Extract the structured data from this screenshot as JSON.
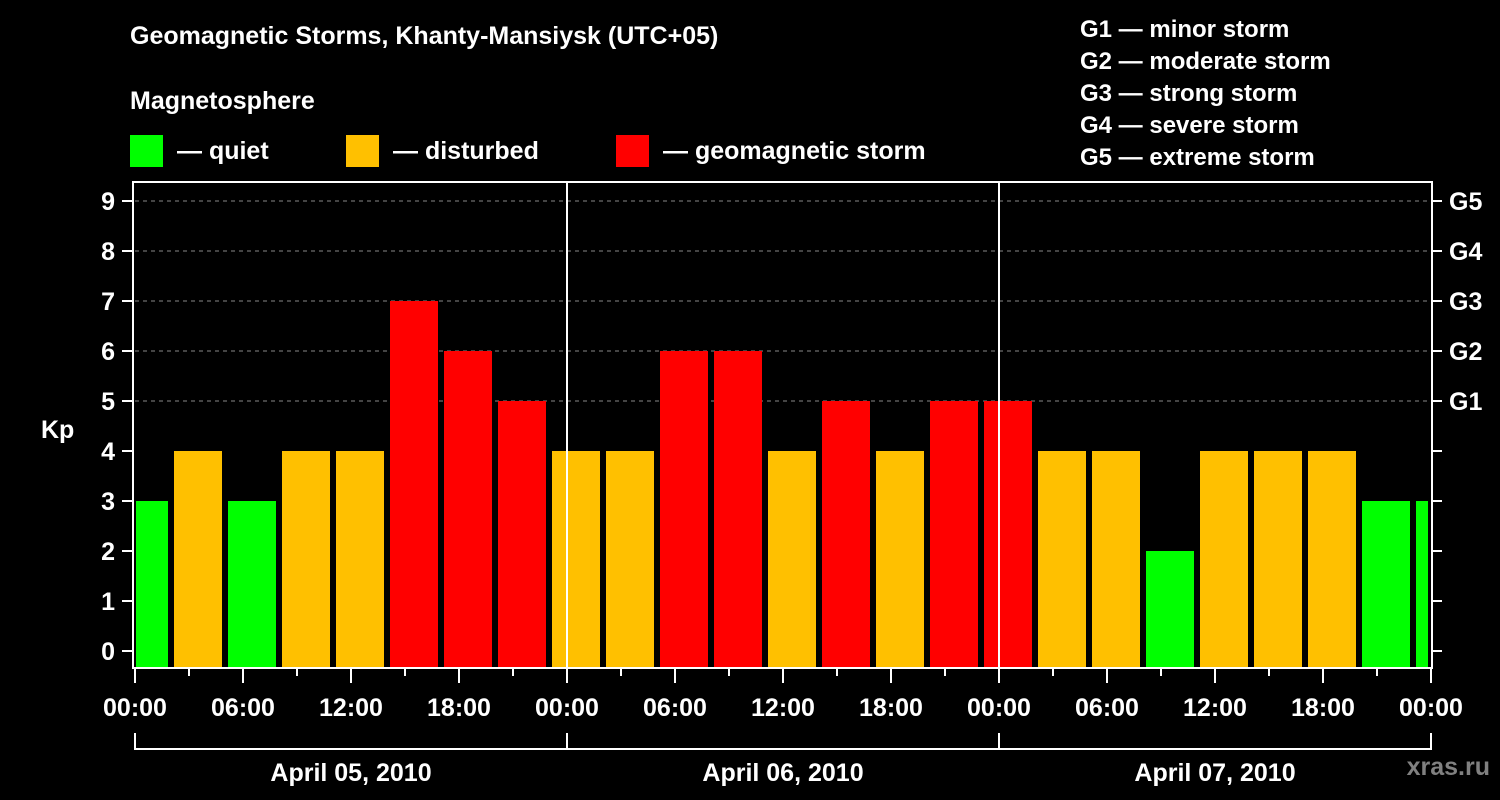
{
  "header": {
    "title": "Geomagnetic Storms, Khanty-Mansiysk (UTC+05)",
    "subtitle": "Magnetosphere"
  },
  "legend": {
    "items": [
      {
        "label": "— quiet",
        "color": "#00ff00"
      },
      {
        "label": "— disturbed",
        "color": "#ffc000"
      },
      {
        "label": "— geomagnetic storm",
        "color": "#ff0000"
      }
    ]
  },
  "storm_scale": [
    "G1 — minor storm",
    "G2 — moderate storm",
    "G3 — strong storm",
    "G4 — severe storm",
    "G5 — extreme storm"
  ],
  "watermark": "xras.ru",
  "colors": {
    "quiet": "#00ff00",
    "disturbed": "#ffc000",
    "storm": "#ff0000",
    "grid": "#888888",
    "axis": "#ffffff",
    "background": "#000000"
  },
  "chart_data": {
    "type": "bar",
    "title": "Geomagnetic Storms, Khanty-Mansiysk (UTC+05)",
    "subtitle": "Magnetosphere",
    "xlabel": "",
    "ylabel": "Kp",
    "ylim": [
      0,
      9
    ],
    "yticks": [
      0,
      1,
      2,
      3,
      4,
      5,
      6,
      7,
      8,
      9
    ],
    "right_axis_labels": [
      {
        "kp": 5,
        "label": "G1"
      },
      {
        "kp": 6,
        "label": "G2"
      },
      {
        "kp": 7,
        "label": "G3"
      },
      {
        "kp": 8,
        "label": "G4"
      },
      {
        "kp": 9,
        "label": "G5"
      }
    ],
    "grid": {
      "horizontal_dashed_at": [
        5,
        6,
        7,
        8,
        9
      ]
    },
    "x_tick_labels": [
      "00:00",
      "06:00",
      "12:00",
      "18:00",
      "00:00",
      "06:00",
      "12:00",
      "18:00",
      "00:00",
      "06:00",
      "12:00",
      "18:00",
      "00:00"
    ],
    "dates": [
      "April 05, 2010",
      "April 06, 2010",
      "April 07, 2010"
    ],
    "legend": [
      {
        "label": "quiet",
        "color": "#00ff00"
      },
      {
        "label": "disturbed",
        "color": "#ffc000"
      },
      {
        "label": "geomagnetic storm",
        "color": "#ff0000"
      }
    ],
    "bars": [
      {
        "kp": 3,
        "status": "quiet"
      },
      {
        "kp": 4,
        "status": "disturbed"
      },
      {
        "kp": 3,
        "status": "quiet"
      },
      {
        "kp": 4,
        "status": "disturbed"
      },
      {
        "kp": 4,
        "status": "disturbed"
      },
      {
        "kp": 7,
        "status": "storm"
      },
      {
        "kp": 6,
        "status": "storm"
      },
      {
        "kp": 5,
        "status": "storm"
      },
      {
        "kp": 4,
        "status": "disturbed"
      },
      {
        "kp": 4,
        "status": "disturbed"
      },
      {
        "kp": 6,
        "status": "storm"
      },
      {
        "kp": 6,
        "status": "storm"
      },
      {
        "kp": 4,
        "status": "disturbed"
      },
      {
        "kp": 5,
        "status": "storm"
      },
      {
        "kp": 4,
        "status": "disturbed"
      },
      {
        "kp": 5,
        "status": "storm"
      },
      {
        "kp": 5,
        "status": "storm"
      },
      {
        "kp": 4,
        "status": "disturbed"
      },
      {
        "kp": 4,
        "status": "disturbed"
      },
      {
        "kp": 2,
        "status": "quiet"
      },
      {
        "kp": 4,
        "status": "disturbed"
      },
      {
        "kp": 4,
        "status": "disturbed"
      },
      {
        "kp": 4,
        "status": "disturbed"
      },
      {
        "kp": 3,
        "status": "quiet"
      },
      {
        "kp": 3,
        "status": "quiet"
      }
    ],
    "values": [
      3,
      4,
      3,
      4,
      4,
      7,
      6,
      5,
      4,
      4,
      6,
      6,
      4,
      5,
      4,
      5,
      5,
      4,
      4,
      2,
      4,
      4,
      4,
      3,
      3
    ]
  }
}
